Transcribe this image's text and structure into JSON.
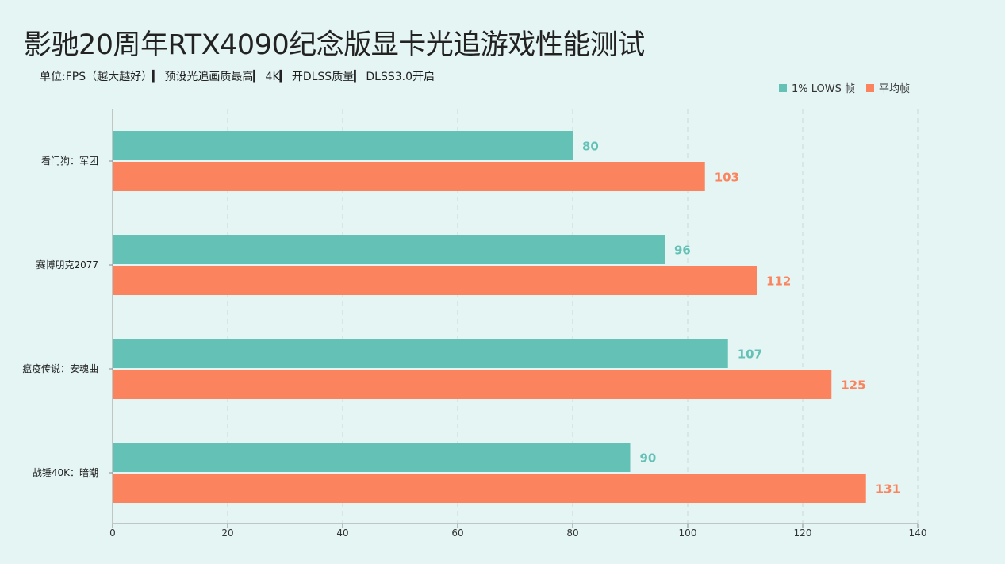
{
  "chart_data": {
    "type": "bar",
    "orientation": "horizontal",
    "title": "影驰20周年RTX4090纪念版显卡光追游戏性能测试",
    "subtitle": "单位:FPS（越大越好）▎ 预设光追画质最高▎ 4K▎ 开DLSS质量▎ DLSS3.0开启",
    "categories": [
      "看门狗：军团",
      "赛博朋克2077",
      "瘟疫传说：安魂曲",
      "战锤40K：暗潮"
    ],
    "series": [
      {
        "name": "1% LOWS 帧",
        "values": [
          80,
          96,
          107,
          90
        ],
        "color": "#63c1b5"
      },
      {
        "name": "平均帧",
        "values": [
          103,
          112,
          125,
          131
        ],
        "color": "#fb845e"
      }
    ],
    "xlim": [
      0,
      140
    ],
    "xticks": [
      0,
      20,
      40,
      60,
      80,
      100,
      120,
      140
    ],
    "grid": "vertical dashed",
    "legend_position": "top-right"
  }
}
